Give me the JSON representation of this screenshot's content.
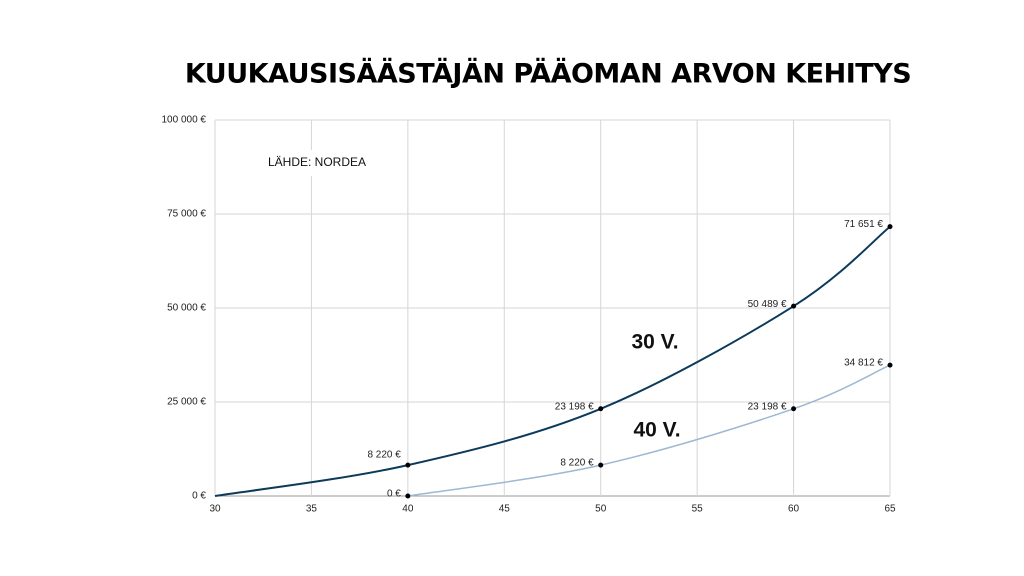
{
  "chart_data": {
    "type": "line",
    "title": "KUUKAUSISÄÄSTÄJÄN PÄÄOMAN ARVON KEHITYS",
    "source": "LÄHDE: NORDEA",
    "series": [
      {
        "name": "30 V.",
        "color": "#0c3a5a",
        "x": [
          30,
          40,
          50,
          60,
          65
        ],
        "values": [
          0,
          8220,
          23198,
          50489,
          71651
        ],
        "value_labels": [
          null,
          "8 220 €",
          "23 198 €",
          "50 489 €",
          "71 651 €"
        ]
      },
      {
        "name": "40 V.",
        "color": "#9db8d2",
        "x": [
          40,
          50,
          60,
          65
        ],
        "values": [
          0,
          8220,
          23198,
          34812
        ],
        "value_labels": [
          "0 €",
          "8 220 €",
          "23 198 €",
          "34 812 €"
        ]
      }
    ],
    "xlim": [
      30,
      65
    ],
    "xticks": [
      30,
      35,
      40,
      45,
      50,
      55,
      60,
      65
    ],
    "ylim": [
      0,
      100000
    ],
    "yticks": [
      {
        "value": 0,
        "label": "0 €"
      },
      {
        "value": 25000,
        "label": "25 000 €"
      },
      {
        "value": 50000,
        "label": "50 000 €"
      },
      {
        "value": 75000,
        "label": "75 000 €"
      },
      {
        "value": 100000,
        "label": "100 000 €"
      }
    ],
    "grid": true
  }
}
